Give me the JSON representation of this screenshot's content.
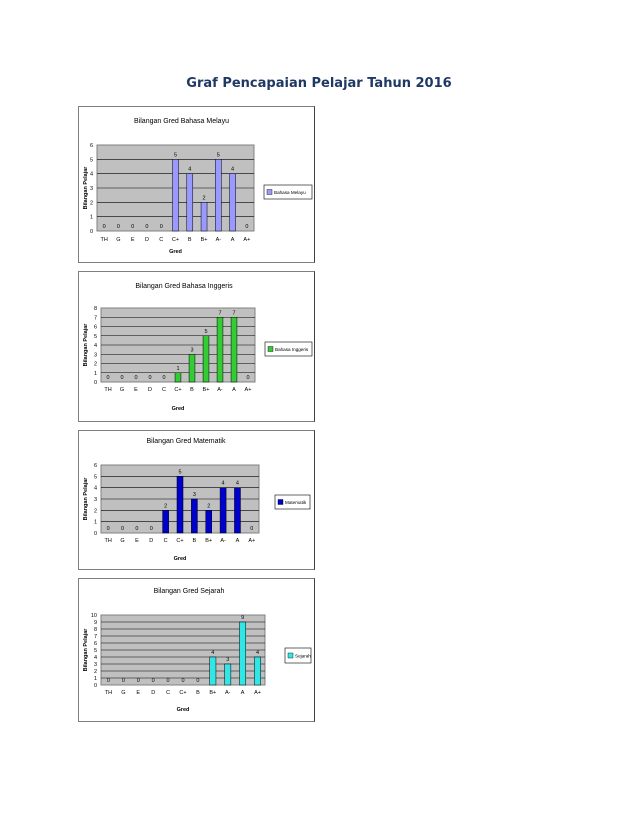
{
  "page": {
    "title": "Graf Pencapaian Pelajar Tahun 2016"
  },
  "chart_data": [
    {
      "type": "bar",
      "title": "Bilangan Gred Bahasa Melayu",
      "xlabel": "Gred",
      "ylabel": "Bilangan Pelajar",
      "categories": [
        "TH",
        "G",
        "E",
        "D",
        "C",
        "C+",
        "B",
        "B+",
        "A-",
        "A",
        "A+"
      ],
      "series": [
        {
          "name": "Bahasa Melayu",
          "values": [
            0,
            0,
            0,
            0,
            0,
            5,
            4,
            2,
            5,
            4,
            0
          ],
          "color": "#9999ff"
        }
      ],
      "ylim": [
        0,
        6
      ],
      "yticks": [
        0,
        1,
        2,
        3,
        4,
        5,
        6
      ],
      "grid": true,
      "legend": "right"
    },
    {
      "type": "bar",
      "title": "Bilangan Gred Bahasa Inggeris",
      "xlabel": "Gred",
      "ylabel": "Bilangan Pelajar",
      "categories": [
        "TH",
        "G",
        "E",
        "D",
        "C",
        "C+",
        "B",
        "B+",
        "A-",
        "A",
        "A+"
      ],
      "series": [
        {
          "name": "Bahasa Inggeris",
          "values": [
            0,
            0,
            0,
            0,
            0,
            1,
            3,
            5,
            7,
            7,
            0
          ],
          "color": "#33cc33"
        }
      ],
      "ylim": [
        0,
        8
      ],
      "yticks": [
        0,
        1,
        2,
        3,
        4,
        5,
        6,
        7,
        8
      ],
      "grid": true,
      "legend": "right"
    },
    {
      "type": "bar",
      "title": "Bilangan Gred Matematik",
      "xlabel": "Gred",
      "ylabel": "Bilangan Pelajar",
      "categories": [
        "TH",
        "G",
        "E",
        "D",
        "C",
        "C+",
        "B",
        "B+",
        "A-",
        "A",
        "A+"
      ],
      "series": [
        {
          "name": "Matematik",
          "values": [
            0,
            0,
            0,
            0,
            2,
            5,
            3,
            2,
            4,
            4,
            0
          ],
          "color": "#0000cc"
        }
      ],
      "ylim": [
        0,
        6
      ],
      "yticks": [
        0,
        1,
        2,
        3,
        4,
        5,
        6
      ],
      "grid": true,
      "legend": "right"
    },
    {
      "type": "bar",
      "title": "Bilangan Gred Sejarah",
      "xlabel": "Gred",
      "ylabel": "Bilangan Pelajar",
      "categories": [
        "TH",
        "G",
        "E",
        "D",
        "C",
        "C+",
        "B",
        "B+",
        "A-",
        "A",
        "A+"
      ],
      "series": [
        {
          "name": "Sejarah",
          "values": [
            0,
            0,
            0,
            0,
            0,
            0,
            0,
            4,
            3,
            9,
            4
          ],
          "color": "#33e6e6"
        }
      ],
      "ylim": [
        0,
        10
      ],
      "yticks": [
        0,
        1,
        2,
        3,
        4,
        5,
        6,
        7,
        8,
        9,
        10
      ],
      "grid": true,
      "legend": "right"
    }
  ]
}
